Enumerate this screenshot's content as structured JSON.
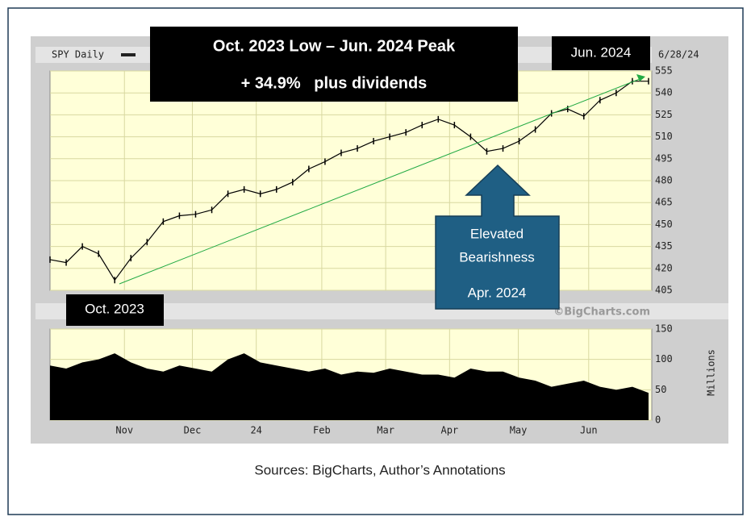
{
  "chart_data": [
    {
      "type": "line",
      "title": "SPY Daily",
      "date_label": "6/28/24",
      "color": "#000000",
      "grid": true,
      "x": [
        0,
        5,
        10,
        15,
        20,
        25,
        30,
        35,
        40,
        45,
        50,
        55,
        60,
        65,
        70,
        75,
        80,
        85,
        90,
        95,
        100,
        105,
        110,
        115,
        120,
        125,
        130,
        135,
        140,
        145,
        150,
        155,
        160,
        165,
        170,
        175,
        180,
        185
      ],
      "values": [
        426,
        424,
        435,
        430,
        412,
        427,
        438,
        452,
        456,
        457,
        460,
        471,
        474,
        471,
        474,
        479,
        488,
        493,
        499,
        502,
        507,
        510,
        513,
        518,
        522,
        518,
        510,
        500,
        502,
        507,
        515,
        526,
        529,
        524,
        535,
        540,
        548,
        548
      ],
      "xlim": [
        0,
        186
      ],
      "ylim": [
        405,
        555
      ],
      "yticks": [
        405,
        420,
        435,
        450,
        465,
        480,
        495,
        510,
        525,
        540,
        555
      ],
      "xticks": [
        {
          "value": 23,
          "label": "Nov"
        },
        {
          "value": 44,
          "label": "Dec"
        },
        {
          "value": 63.75,
          "label": "24"
        },
        {
          "value": 84,
          "label": "Feb"
        },
        {
          "value": 103.75,
          "label": "Mar"
        },
        {
          "value": 123.5,
          "label": "Apr"
        },
        {
          "value": 144.75,
          "label": "May"
        },
        {
          "value": 166.5,
          "label": "Jun"
        }
      ]
    },
    {
      "type": "area",
      "y_label": "Millions",
      "watermark": "©BigCharts.com",
      "color": "#000000",
      "grid": true,
      "x": [
        0,
        5,
        10,
        15,
        20,
        25,
        30,
        35,
        40,
        45,
        50,
        55,
        60,
        65,
        70,
        75,
        80,
        85,
        90,
        95,
        100,
        105,
        110,
        115,
        120,
        125,
        130,
        135,
        140,
        145,
        150,
        155,
        160,
        165,
        170,
        175,
        180,
        185
      ],
      "values": [
        90,
        85,
        95,
        100,
        110,
        95,
        85,
        80,
        90,
        85,
        80,
        100,
        110,
        95,
        90,
        85,
        80,
        85,
        75,
        80,
        78,
        85,
        80,
        75,
        75,
        70,
        85,
        80,
        80,
        70,
        65,
        55,
        60,
        65,
        55,
        50,
        55,
        45
      ],
      "xlim": [
        0,
        186
      ],
      "ylim": [
        0,
        150
      ],
      "yticks": [
        0,
        50,
        100,
        150
      ],
      "xticks": [
        {
          "value": 23,
          "label": "Nov"
        },
        {
          "value": 44,
          "label": "Dec"
        },
        {
          "value": 63.75,
          "label": "24"
        },
        {
          "value": 84,
          "label": "Feb"
        },
        {
          "value": 103.75,
          "label": "Mar"
        },
        {
          "value": 123.5,
          "label": "Apr"
        },
        {
          "value": 144.75,
          "label": "May"
        },
        {
          "value": 166.5,
          "label": "Jun"
        }
      ]
    }
  ],
  "annotations": {
    "headline": "Oct. 2023 Low – Jun. 2024 Peak",
    "gain": "+ 34.9%   plus dividends",
    "peak": "Jun. 2024",
    "low": "Oct. 2023",
    "bearish_line1": "Elevated",
    "bearish_line2": "Bearishness",
    "bearish_date": "Apr. 2024"
  },
  "source": "Sources: BigCharts, Author’s Annotations"
}
